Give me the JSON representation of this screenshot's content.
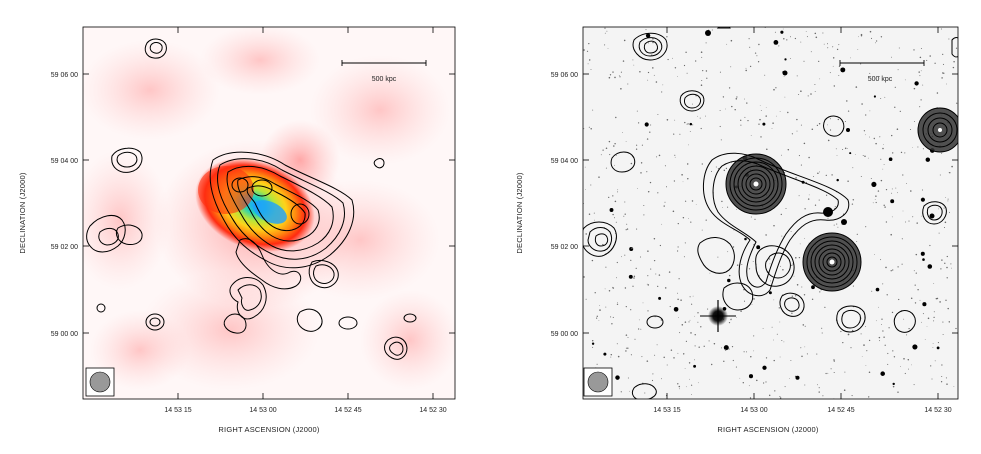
{
  "panels": [
    {
      "id": "left",
      "scale_bar_label": "500 kpc",
      "x_axis_title": "RIGHT ASCENSION (J2000)",
      "y_axis_title": "DECLINATION (J2000)",
      "x_ticks": [
        "14 53 15",
        "14 53 00",
        "14 52 45",
        "14 52 30"
      ],
      "y_ticks": [
        "59 06 00",
        "59 04 00",
        "59 02 00",
        "59 00 00"
      ]
    },
    {
      "id": "right",
      "scale_bar_label": "500 kpc",
      "x_axis_title": "RIGHT ASCENSION (J2000)",
      "y_axis_title": "DECLINATION (J2000)",
      "x_ticks": [
        "14 53 15",
        "14 53 00",
        "14 52 45",
        "14 52 30"
      ],
      "y_ticks": [
        "59 06 00",
        "59 04 00",
        "59 02 00",
        "59 00 00"
      ]
    }
  ]
}
